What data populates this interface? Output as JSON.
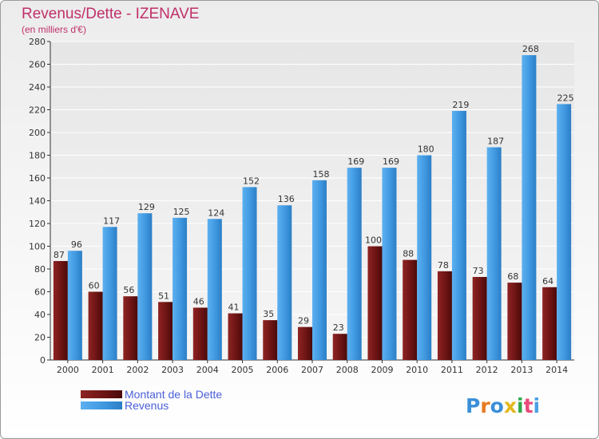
{
  "chart_data": {
    "type": "bar",
    "title": "Revenus/Dette - IZENAVE",
    "subtitle": "(en milliers d'€)",
    "categories": [
      "2000",
      "2001",
      "2002",
      "2003",
      "2004",
      "2005",
      "2006",
      "2007",
      "2008",
      "2009",
      "2010",
      "2011",
      "2012",
      "2013",
      "2014"
    ],
    "series": [
      {
        "name": "Montant de la Dette",
        "color": "#7a1a1a",
        "values": [
          87,
          60,
          56,
          51,
          46,
          41,
          35,
          29,
          23,
          100,
          88,
          78,
          73,
          68,
          64
        ]
      },
      {
        "name": "Revenus",
        "color": "#4aa0e6",
        "values": [
          96,
          117,
          129,
          125,
          124,
          152,
          136,
          158,
          169,
          169,
          180,
          219,
          187,
          268,
          225
        ]
      }
    ],
    "ylim": [
      0,
      280
    ],
    "yticks": [
      0,
      20,
      40,
      60,
      80,
      100,
      120,
      140,
      160,
      180,
      200,
      220,
      240,
      260,
      280
    ],
    "grid": true,
    "legend": "bottom-left"
  },
  "brand": {
    "text": "Proxiti"
  }
}
